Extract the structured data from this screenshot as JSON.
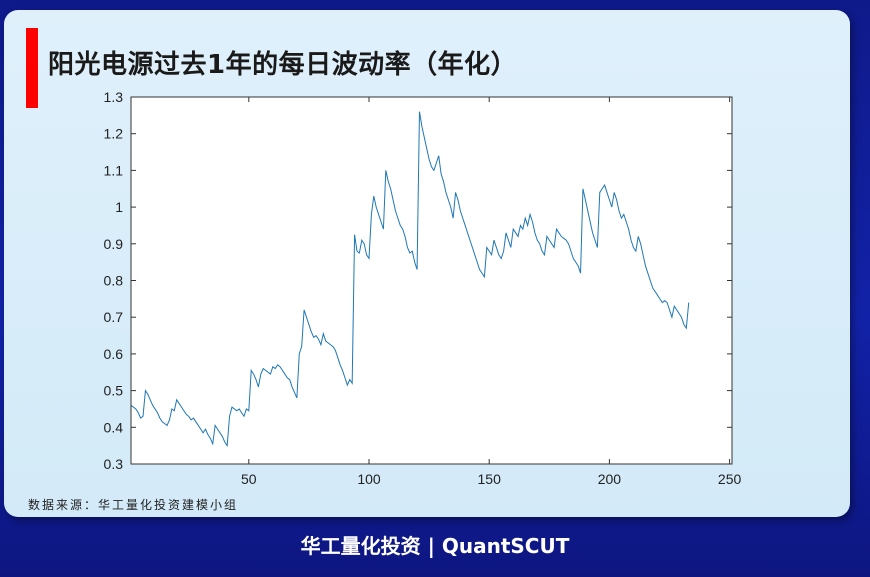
{
  "header": {
    "title": "阳光电源过去1年的每日波动率（年化）"
  },
  "source_note": "数据来源：华工量化投资建模小组",
  "footer": {
    "text": "华工量化投资 | QuantSCUT"
  },
  "colors": {
    "accent": "#ff0000",
    "line": "#1f77b4",
    "footer_bg": "#1222a8"
  },
  "chart_data": {
    "type": "line",
    "title": "阳光电源过去1年的每日波动率（年化）",
    "xlabel": "",
    "ylabel": "",
    "xlim": [
      1,
      251
    ],
    "ylim": [
      0.3,
      1.3
    ],
    "xticks": [
      50,
      100,
      150,
      200,
      250
    ],
    "yticks": [
      0.3,
      0.4,
      0.5,
      0.6,
      0.7,
      0.8,
      0.9,
      1,
      1.1,
      1.2,
      1.3
    ],
    "ytick_labels": [
      "0.3",
      "0.4",
      "0.5",
      "0.6",
      "0.7",
      "0.8",
      "0.9",
      "1",
      "1.1",
      "1.2",
      "1.3"
    ],
    "xtick_labels": [
      "50",
      "100",
      "150",
      "200",
      "250"
    ],
    "grid": false,
    "legend": "none",
    "series": [
      {
        "values": [
          0.46,
          0.455,
          0.45,
          0.44,
          0.425,
          0.43,
          0.5,
          0.49,
          0.475,
          0.46,
          0.45,
          0.44,
          0.425,
          0.415,
          0.41,
          0.405,
          0.42,
          0.45,
          0.445,
          0.475,
          0.465,
          0.455,
          0.445,
          0.435,
          0.43,
          0.42,
          0.425,
          0.415,
          0.405,
          0.395,
          0.385,
          0.395,
          0.38,
          0.37,
          0.355,
          0.405,
          0.395,
          0.385,
          0.375,
          0.36,
          0.35,
          0.43,
          0.455,
          0.45,
          0.445,
          0.45,
          0.44,
          0.43,
          0.45,
          0.445,
          0.555,
          0.545,
          0.53,
          0.51,
          0.545,
          0.56,
          0.555,
          0.55,
          0.545,
          0.565,
          0.56,
          0.57,
          0.565,
          0.555,
          0.545,
          0.535,
          0.53,
          0.51,
          0.495,
          0.48,
          0.6,
          0.62,
          0.72,
          0.7,
          0.68,
          0.66,
          0.645,
          0.65,
          0.64,
          0.625,
          0.655,
          0.635,
          0.63,
          0.625,
          0.62,
          0.61,
          0.59,
          0.57,
          0.555,
          0.535,
          0.515,
          0.53,
          0.52,
          0.925,
          0.88,
          0.875,
          0.91,
          0.9,
          0.87,
          0.86,
          0.98,
          1.03,
          1.0,
          0.98,
          0.96,
          0.94,
          1.1,
          1.07,
          1.05,
          1.02,
          0.99,
          0.97,
          0.95,
          0.94,
          0.92,
          0.89,
          0.875,
          0.88,
          0.85,
          0.83,
          1.26,
          1.22,
          1.19,
          1.16,
          1.13,
          1.11,
          1.1,
          1.12,
          1.14,
          1.09,
          1.07,
          1.04,
          1.02,
          1.0,
          0.97,
          1.04,
          1.02,
          0.99,
          0.97,
          0.95,
          0.93,
          0.91,
          0.89,
          0.87,
          0.85,
          0.83,
          0.82,
          0.81,
          0.89,
          0.88,
          0.87,
          0.91,
          0.89,
          0.87,
          0.86,
          0.88,
          0.93,
          0.91,
          0.89,
          0.94,
          0.93,
          0.92,
          0.95,
          0.94,
          0.97,
          0.95,
          0.98,
          0.96,
          0.93,
          0.91,
          0.9,
          0.88,
          0.87,
          0.92,
          0.91,
          0.9,
          0.89,
          0.94,
          0.93,
          0.92,
          0.915,
          0.91,
          0.9,
          0.88,
          0.86,
          0.85,
          0.84,
          0.82,
          1.05,
          1.02,
          0.99,
          0.96,
          0.93,
          0.91,
          0.89,
          1.04,
          1.05,
          1.06,
          1.04,
          1.02,
          1.0,
          1.04,
          1.02,
          0.99,
          0.97,
          0.98,
          0.96,
          0.94,
          0.91,
          0.89,
          0.88,
          0.92,
          0.9,
          0.87,
          0.84,
          0.82,
          0.8,
          0.78,
          0.77,
          0.76,
          0.75,
          0.74,
          0.745,
          0.74,
          0.72,
          0.7,
          0.73,
          0.72,
          0.71,
          0.7,
          0.68,
          0.67,
          0.74
        ]
      }
    ]
  }
}
